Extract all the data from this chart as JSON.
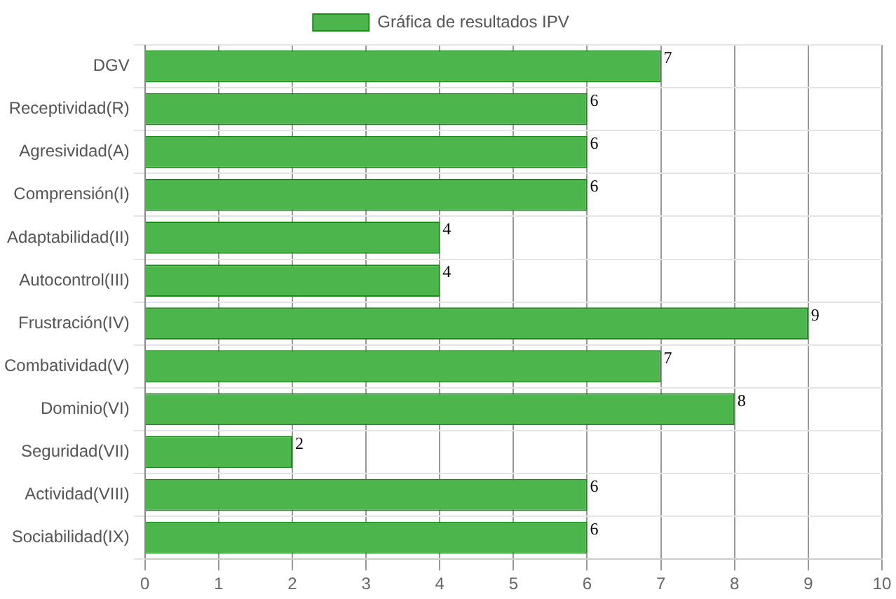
{
  "chart_data": {
    "type": "bar",
    "orientation": "horizontal",
    "categories": [
      "DGV",
      "Receptividad(R)",
      "Agresividad(A)",
      "Comprensión(I)",
      "Adaptabilidad(II)",
      "Autocontrol(III)",
      "Frustración(IV)",
      "Combatividad(V)",
      "Dominio(VI)",
      "Seguridad(VII)",
      "Actividad(VIII)",
      "Sociabilidad(IX)"
    ],
    "series": [
      {
        "name": "Gráfica de resultados IPV",
        "color": "#4cb54c",
        "values": [
          7,
          6,
          6,
          6,
          4,
          4,
          9,
          7,
          8,
          2,
          6,
          6
        ]
      }
    ],
    "xlim": [
      0,
      10
    ],
    "xticks": [
      0,
      1,
      2,
      3,
      4,
      5,
      6,
      7,
      8,
      9,
      10
    ],
    "grid": true,
    "legend": "top",
    "data_labels": true
  }
}
